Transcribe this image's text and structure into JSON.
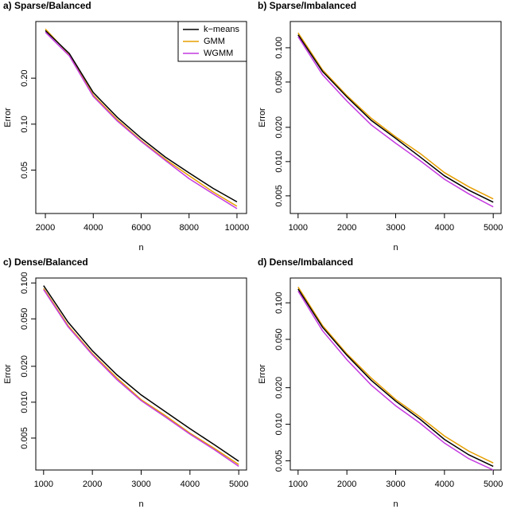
{
  "chart_data": [
    {
      "type": "line",
      "title": "a) Sparse/Balanced",
      "x_label": "n",
      "y_label": "Error",
      "log_y": true,
      "x": [
        2000,
        3000,
        4000,
        5000,
        6000,
        7000,
        8000,
        9000,
        10000
      ],
      "series": [
        {
          "name": "k−means",
          "color": "#000000",
          "values": [
            0.41,
            0.29,
            0.161,
            0.111,
            0.081,
            0.061,
            0.048,
            0.038,
            0.031
          ]
        },
        {
          "name": "GMM",
          "color": "#e69f00",
          "values": [
            0.42,
            0.285,
            0.155,
            0.107,
            0.078,
            0.059,
            0.046,
            0.036,
            0.029
          ]
        },
        {
          "name": "WGMM",
          "color": "#c43ae0",
          "values": [
            0.4,
            0.28,
            0.152,
            0.105,
            0.077,
            0.058,
            0.044,
            0.035,
            0.028
          ]
        }
      ],
      "xlim": [
        1600,
        10400
      ],
      "xticks": [
        2000,
        4000,
        6000,
        8000,
        10000
      ],
      "ylim": [
        0.026,
        0.47
      ],
      "yticks": [
        0.05,
        {
          "value": 0.1,
          "label": "0.10"
        },
        {
          "value": 0.2,
          "label": "0.20"
        }
      ],
      "legend": "topright"
    },
    {
      "type": "line",
      "title": "b) Sparse/Imbalanced",
      "x_label": "n",
      "y_label": "Error",
      "log_y": true,
      "x": [
        1000,
        1500,
        2000,
        2500,
        3000,
        3500,
        4000,
        4500,
        5000
      ],
      "series": [
        {
          "color": "#000000",
          "values": [
            0.13,
            0.062,
            0.037,
            0.023,
            0.016,
            0.011,
            0.0075,
            0.0056,
            0.0044
          ]
        },
        {
          "color": "#e69f00",
          "values": [
            0.135,
            0.064,
            0.038,
            0.024,
            0.0165,
            0.0118,
            0.008,
            0.006,
            0.0047
          ]
        },
        {
          "color": "#c43ae0",
          "values": [
            0.125,
            0.058,
            0.034,
            0.021,
            0.0145,
            0.0102,
            0.007,
            0.0052,
            0.004
          ]
        }
      ],
      "xlim": [
        840,
        5160
      ],
      "xticks": [
        1000,
        2000,
        3000,
        4000,
        5000
      ],
      "ylim": [
        0.0035,
        0.17
      ],
      "yticks": [
        0.005,
        {
          "value": 0.01,
          "label": "0.010"
        },
        {
          "value": 0.02,
          "label": "0.020"
        },
        {
          "value": 0.05,
          "label": "0.050"
        },
        {
          "value": 0.1,
          "label": "0.100"
        }
      ]
    },
    {
      "type": "line",
      "title": "c) Dense/Balanced",
      "x_label": "n",
      "y_label": "Error",
      "log_y": true,
      "x": [
        1000,
        1500,
        2000,
        2500,
        3000,
        3500,
        4000,
        4500,
        5000
      ],
      "series": [
        {
          "color": "#000000",
          "values": [
            0.095,
            0.047,
            0.027,
            0.017,
            0.0115,
            0.0083,
            0.006,
            0.0044,
            0.0032
          ]
        },
        {
          "color": "#e69f00",
          "values": [
            0.09,
            0.044,
            0.0255,
            0.016,
            0.0105,
            0.0077,
            0.0055,
            0.0041,
            0.003
          ]
        },
        {
          "color": "#c43ae0",
          "values": [
            0.088,
            0.043,
            0.025,
            0.0155,
            0.0103,
            0.0075,
            0.0054,
            0.004,
            0.0029
          ]
        }
      ],
      "xlim": [
        840,
        5160
      ],
      "xticks": [
        1000,
        2000,
        3000,
        4000,
        5000
      ],
      "ylim": [
        0.0027,
        0.11
      ],
      "yticks": [
        0.005,
        {
          "value": 0.01,
          "label": "0.010"
        },
        {
          "value": 0.02,
          "label": "0.020"
        },
        {
          "value": 0.05,
          "label": "0.050"
        },
        {
          "value": 0.1,
          "label": "0.100"
        }
      ]
    },
    {
      "type": "line",
      "title": "d) Dense/Imbalanced",
      "x_label": "n",
      "y_label": "Error",
      "log_y": true,
      "x": [
        1000,
        1500,
        2000,
        2500,
        3000,
        3500,
        4000,
        4500,
        5000
      ],
      "series": [
        {
          "color": "#000000",
          "values": [
            0.13,
            0.063,
            0.037,
            0.023,
            0.0155,
            0.011,
            0.0075,
            0.0056,
            0.0045
          ]
        },
        {
          "color": "#e69f00",
          "values": [
            0.135,
            0.065,
            0.038,
            0.024,
            0.016,
            0.0115,
            0.008,
            0.006,
            0.0048
          ]
        },
        {
          "color": "#c43ae0",
          "values": [
            0.125,
            0.059,
            0.034,
            0.021,
            0.0142,
            0.0102,
            0.007,
            0.0052,
            0.0042
          ]
        }
      ],
      "xlim": [
        840,
        5160
      ],
      "xticks": [
        1000,
        2000,
        3000,
        4000,
        5000
      ],
      "ylim": [
        0.0042,
        0.16
      ],
      "yticks": [
        0.005,
        {
          "value": 0.01,
          "label": "0.010"
        },
        {
          "value": 0.02,
          "label": "0.020"
        },
        {
          "value": 0.05,
          "label": "0.050"
        },
        {
          "value": 0.1,
          "label": "0.100"
        }
      ]
    }
  ]
}
